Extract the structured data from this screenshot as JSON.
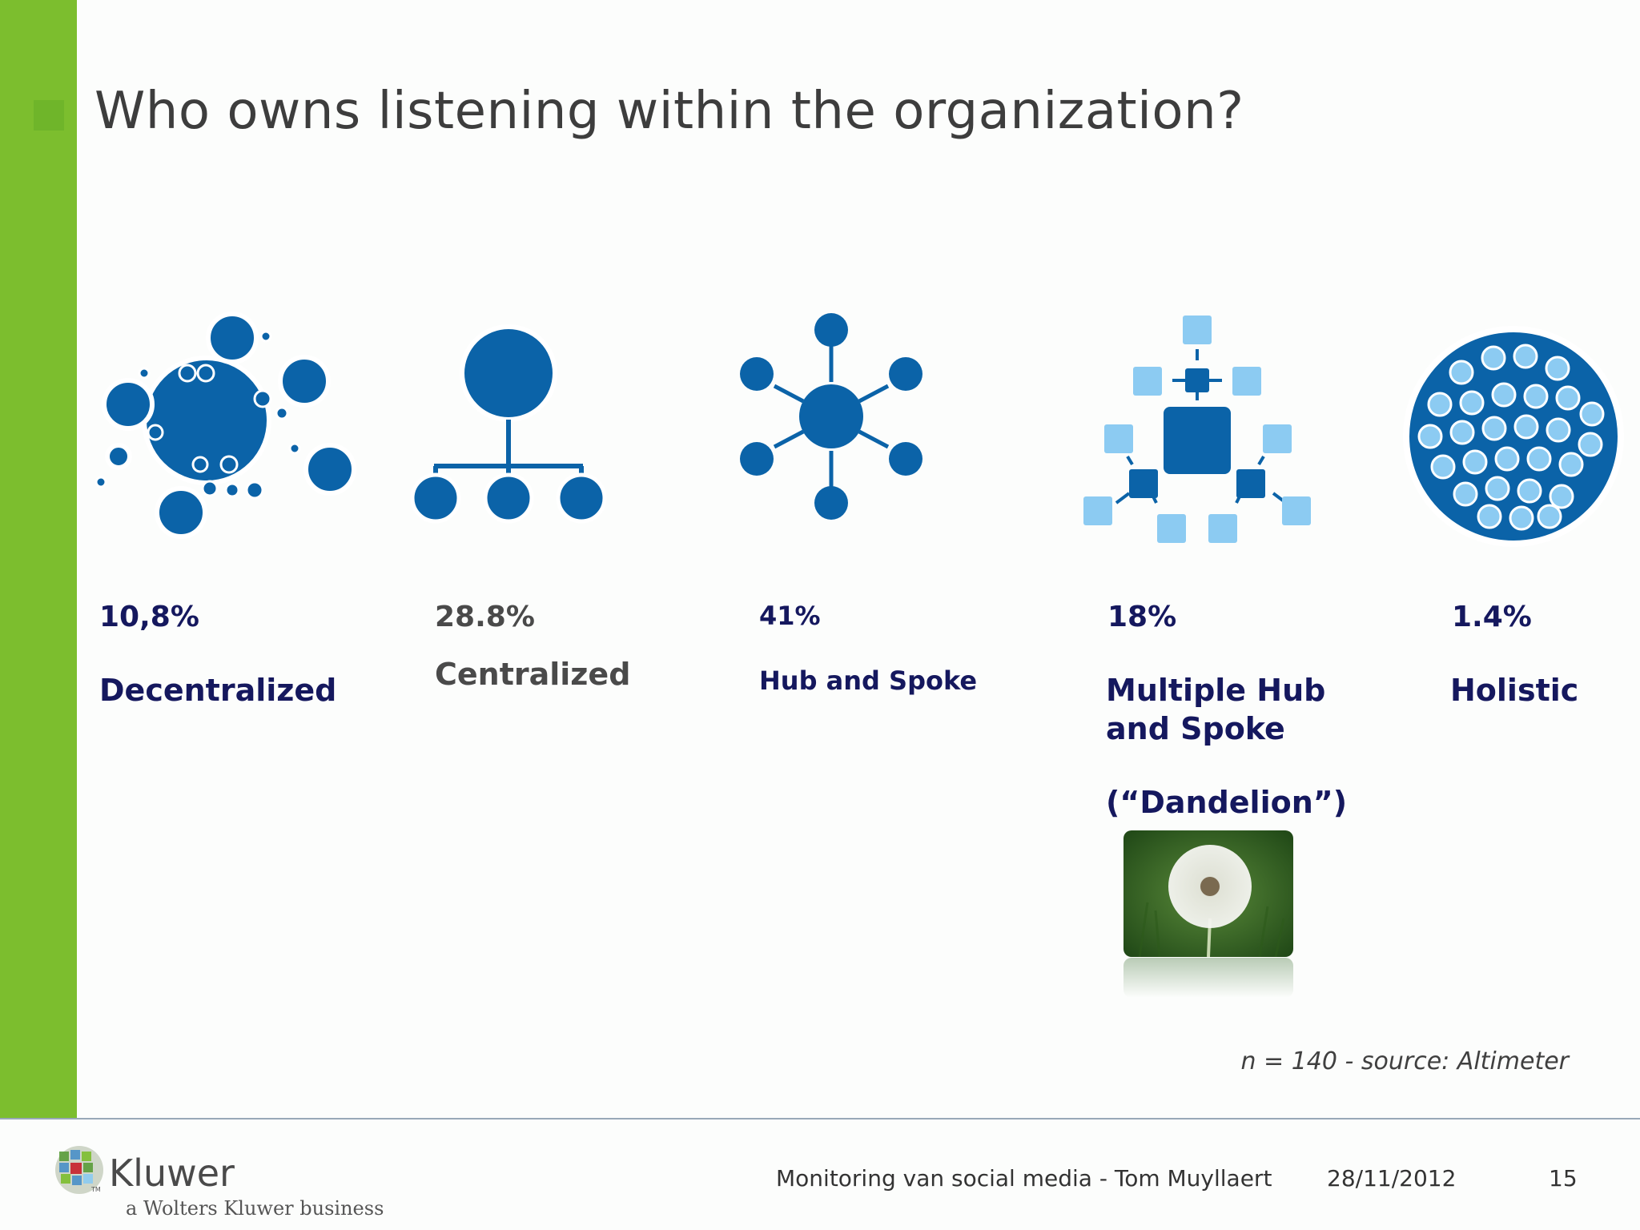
{
  "slide": {
    "title": "Who owns listening within the organization?"
  },
  "models": [
    {
      "percent": "10,8%",
      "label": "Decentralized",
      "icon": "decentralized-icon"
    },
    {
      "percent": "28.8%",
      "label": "Centralized",
      "icon": "centralized-icon"
    },
    {
      "percent": "41%",
      "label": "Hub and Spoke",
      "icon": "hub-and-spoke-icon"
    },
    {
      "percent": "18%",
      "label_line1": "Multiple Hub",
      "label_line2": "and Spoke",
      "nickname": "(“Dandelion”)",
      "icon": "multiple-hub-and-spoke-icon"
    },
    {
      "percent": "1.4%",
      "label": "Holistic",
      "icon": "holistic-icon"
    }
  ],
  "photo": {
    "subject": "dandelion-photo"
  },
  "source": "n = 140 - source: Altimeter",
  "footer": {
    "presentation": "Monitoring van social media - Tom Muyllaert",
    "date": "28/11/2012",
    "page": "15",
    "logo_small": "TM",
    "logo_name": "Kluwer",
    "logo_sub": "a Wolters Kluwer business"
  },
  "colors": {
    "accent_green": "#7cbe2e",
    "icon_blue": "#0b63a8",
    "light_blue": "#8ccbf2",
    "text_navy": "#15185e"
  }
}
